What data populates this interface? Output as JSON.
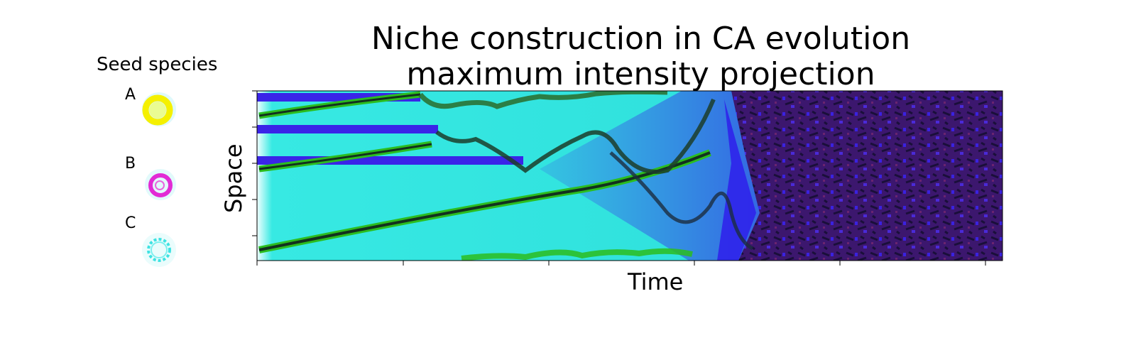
{
  "chart_data": {
    "type": "heatmap",
    "title": [
      "Niche construction in CA evolution",
      "maximum intensity projection"
    ],
    "xlabel": "Time",
    "ylabel": "Space",
    "grid": false,
    "colors": {
      "background_field": "#2ee6e0",
      "species_a": "#f5f000",
      "species_b": "#e22bd5",
      "species_c": "#3fe2e2",
      "invader": "#3a24e8",
      "late_mixture": "#3a1470",
      "trail_green": "#2bbd1f",
      "trail_dark": "#12301f"
    },
    "legend": {
      "title": "Seed species",
      "placement": "left",
      "entries": [
        {
          "label": "A",
          "icon": "yellow-ring-icon"
        },
        {
          "label": "B",
          "icon": "magenta-ring-icon"
        },
        {
          "label": "C",
          "icon": "cyan-gear-icon"
        }
      ]
    }
  }
}
